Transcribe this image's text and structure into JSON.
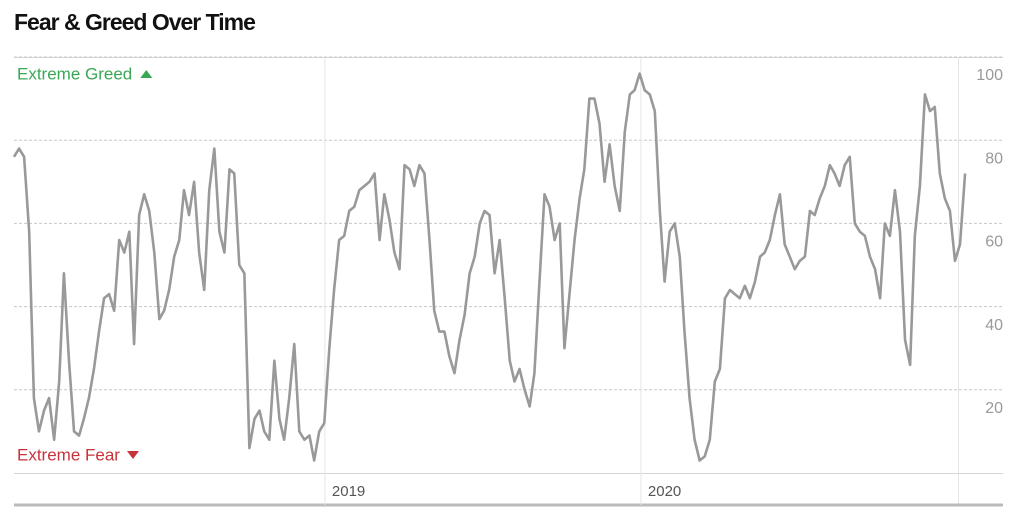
{
  "chart_data": {
    "type": "line",
    "title": "Fear & Greed Over Time",
    "annotations": [
      {
        "text": "Extreme Greed",
        "color": "#3aa757"
      },
      {
        "text": "Extreme Fear",
        "color": "#c7333a"
      }
    ],
    "color": "#999999",
    "grid": true,
    "ylim": [
      0,
      100
    ],
    "yticks": [
      20,
      40,
      60,
      80,
      100
    ],
    "xlim": [
      2018.016,
      2021.146
    ],
    "xticks": [
      2019,
      2020
    ],
    "x": [
      2018.016,
      2018.032,
      2018.048,
      2018.064,
      2018.079,
      2018.095,
      2018.111,
      2018.127,
      2018.143,
      2018.159,
      2018.174,
      2018.19,
      2018.206,
      2018.222,
      2018.237,
      2018.253,
      2018.269,
      2018.285,
      2018.301,
      2018.317,
      2018.333,
      2018.349,
      2018.365,
      2018.381,
      2018.396,
      2018.412,
      2018.428,
      2018.444,
      2018.46,
      2018.476,
      2018.491,
      2018.507,
      2018.523,
      2018.539,
      2018.554,
      2018.57,
      2018.586,
      2018.602,
      2018.618,
      2018.634,
      2018.65,
      2018.666,
      2018.682,
      2018.698,
      2018.713,
      2018.729,
      2018.745,
      2018.761,
      2018.777,
      2018.793,
      2018.808,
      2018.824,
      2018.84,
      2018.856,
      2018.871,
      2018.887,
      2018.903,
      2018.919,
      2018.935,
      2018.951,
      2018.966,
      2018.982,
      2018.998,
      2019.014,
      2019.029,
      2019.045,
      2019.061,
      2019.077,
      2019.093,
      2019.109,
      2019.125,
      2019.141,
      2019.157,
      2019.173,
      2019.188,
      2019.204,
      2019.22,
      2019.236,
      2019.252,
      2019.268,
      2019.283,
      2019.299,
      2019.315,
      2019.331,
      2019.346,
      2019.362,
      2019.378,
      2019.394,
      2019.41,
      2019.426,
      2019.442,
      2019.458,
      2019.474,
      2019.49,
      2019.505,
      2019.521,
      2019.537,
      2019.553,
      2019.569,
      2019.585,
      2019.6,
      2019.616,
      2019.632,
      2019.648,
      2019.663,
      2019.679,
      2019.695,
      2019.711,
      2019.727,
      2019.743,
      2019.758,
      2019.774,
      2019.79,
      2019.806,
      2019.821,
      2019.837,
      2019.853,
      2019.869,
      2019.885,
      2019.901,
      2019.917,
      2019.933,
      2019.949,
      2019.965,
      2019.98,
      2019.996,
      2020.012,
      2020.028,
      2020.044,
      2020.06,
      2020.075,
      2020.091,
      2020.107,
      2020.123,
      2020.138,
      2020.154,
      2020.17,
      2020.186,
      2020.202,
      2020.218,
      2020.234,
      2020.25,
      2020.266,
      2020.282,
      2020.297,
      2020.313,
      2020.329,
      2020.345,
      2020.361,
      2020.377,
      2020.392,
      2020.408,
      2020.424,
      2020.44,
      2020.455,
      2020.471,
      2020.487,
      2020.503,
      2020.519,
      2020.535,
      2020.55,
      2020.566,
      2020.582,
      2020.598,
      2020.613,
      2020.629,
      2020.645,
      2020.661,
      2020.677,
      2020.693,
      2020.709,
      2020.725,
      2020.741,
      2020.757,
      2020.772,
      2020.788,
      2020.804,
      2020.82,
      2020.836,
      2020.852,
      2020.867,
      2020.883,
      2020.899,
      2020.915,
      2020.93,
      2020.946,
      2020.962,
      2020.978,
      2020.994,
      2021.01,
      2021.026
    ],
    "values": [
      76,
      78,
      76,
      58,
      18,
      10,
      15,
      18,
      8,
      22,
      48,
      27,
      10,
      9,
      13,
      18,
      25,
      34,
      42,
      43,
      39,
      56,
      53,
      58,
      31,
      62,
      67,
      63,
      53,
      37,
      39,
      44,
      52,
      56,
      68,
      62,
      70,
      53,
      44,
      68,
      78,
      58,
      53,
      73,
      72,
      50,
      48,
      6,
      13,
      15,
      10,
      8,
      27,
      13,
      8,
      18,
      31,
      10,
      8,
      9,
      3,
      10,
      12,
      30,
      44,
      56,
      57,
      63,
      64,
      68,
      69,
      70,
      72,
      56,
      67,
      61,
      53,
      49,
      74,
      73,
      69,
      74,
      72,
      56,
      39,
      34,
      34,
      28,
      24,
      32,
      38,
      48,
      52,
      60,
      63,
      62,
      48,
      56,
      42,
      27,
      22,
      25,
      20,
      16,
      24,
      46,
      67,
      64,
      56,
      60,
      30,
      43,
      56,
      66,
      73,
      90,
      90,
      84,
      70,
      79,
      69,
      63,
      82,
      91,
      92,
      96,
      92,
      91,
      87,
      63,
      46,
      58,
      60,
      52,
      34,
      18,
      8,
      3,
      4,
      8,
      22,
      25,
      42,
      44,
      43,
      42,
      45,
      42,
      46,
      52,
      53,
      56,
      62,
      67,
      55,
      52,
      49,
      51,
      52,
      63,
      62,
      66,
      69,
      74,
      72,
      69,
      74,
      76,
      60,
      58,
      57,
      52,
      49,
      42,
      60,
      57,
      68,
      58,
      32,
      26,
      57,
      69,
      91,
      87,
      88,
      72,
      66,
      63,
      51,
      55,
      72
    ]
  }
}
